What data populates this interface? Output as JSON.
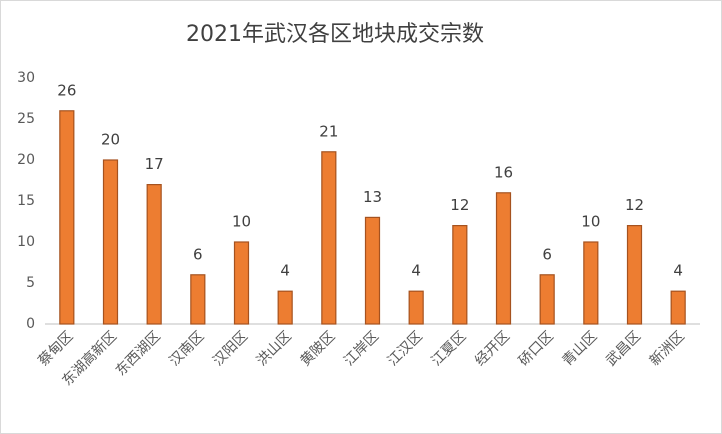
{
  "chart_data": {
    "type": "bar",
    "title": "2021年武汉各区地块成交宗数",
    "categories": [
      "蔡甸区",
      "东湖高新区",
      "东西湖区",
      "汉南区",
      "汉阳区",
      "洪山区",
      "黄陂区",
      "江岸区",
      "江汉区",
      "江夏区",
      "经开区",
      "硚口区",
      "青山区",
      "武昌区",
      "新洲区"
    ],
    "values": [
      26,
      20,
      17,
      6,
      10,
      4,
      21,
      13,
      4,
      12,
      16,
      6,
      10,
      12,
      4
    ],
    "color": "#ed7d31",
    "ylim": [
      0,
      30
    ],
    "yticks": [
      0,
      5,
      10,
      15,
      20,
      25,
      30
    ],
    "grid": false
  }
}
